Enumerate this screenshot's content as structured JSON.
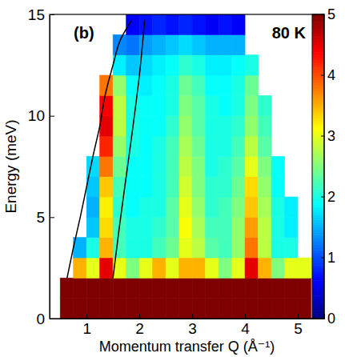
{
  "chart_data": {
    "type": "heatmap",
    "xlabel": "Momentum transfer Q (Å⁻¹)",
    "ylabel": "Energy (meV)",
    "annotations": [
      "(b)",
      "80 K"
    ],
    "color": "jet",
    "xlim": [
      0.3,
      5.5
    ],
    "ylim": [
      0,
      15
    ],
    "xticks": [
      1,
      2,
      3,
      4,
      5
    ],
    "yticks": [
      0,
      5,
      10,
      15
    ],
    "zlim": [
      0,
      5
    ],
    "zticks": [
      0,
      1,
      2,
      3,
      4,
      5
    ],
    "x_edges": [
      0.5,
      0.75,
      1.0,
      1.25,
      1.5,
      1.75,
      2.0,
      2.25,
      2.5,
      2.75,
      3.0,
      3.25,
      3.5,
      3.75,
      4.0,
      4.25,
      4.5,
      4.75,
      5.0,
      5.25
    ],
    "y_edges": [
      0,
      1,
      2,
      3,
      4,
      5,
      6,
      7,
      8,
      9,
      10,
      11,
      12,
      13,
      14,
      15
    ],
    "z": [
      [
        5,
        5,
        5,
        5,
        5,
        5,
        5,
        5,
        5,
        5,
        5,
        5,
        5,
        5,
        5,
        5,
        5,
        5,
        5
      ],
      [
        5,
        5,
        5,
        5,
        5,
        5,
        5,
        5,
        5,
        5,
        5,
        5,
        5,
        5,
        5,
        5,
        5,
        5,
        5
      ],
      [
        null,
        3.5,
        3,
        4.5,
        3,
        2.5,
        3,
        3.5,
        3,
        3.5,
        3.5,
        3,
        2.5,
        3,
        4.5,
        3.5,
        2.5,
        3,
        3
      ],
      [
        null,
        1.5,
        2,
        3.5,
        2.2,
        2,
        2,
        2.2,
        2.4,
        3,
        2.8,
        2.3,
        2.2,
        2.6,
        3.8,
        2.8,
        2,
        2,
        null
      ],
      [
        null,
        null,
        1.6,
        3.3,
        2.2,
        2,
        2,
        2.1,
        2.3,
        3.1,
        2.7,
        2.2,
        2.2,
        2.6,
        3.6,
        2.8,
        2,
        1.8,
        null
      ],
      [
        null,
        null,
        1.5,
        3.2,
        2.1,
        1.9,
        2,
        2,
        2.3,
        3,
        2.6,
        2.1,
        2.2,
        2.5,
        3.4,
        2.7,
        2,
        1.8,
        null
      ],
      [
        null,
        null,
        1.6,
        3.4,
        2.2,
        1.9,
        1.9,
        2,
        2.2,
        2.9,
        2.5,
        2.1,
        2.1,
        2.4,
        3.3,
        2.6,
        1.9,
        null,
        null
      ],
      [
        null,
        null,
        1.7,
        3.8,
        2.4,
        1.9,
        1.9,
        2,
        2.2,
        2.8,
        2.5,
        2,
        2.1,
        2.3,
        3,
        2.5,
        1.9,
        null,
        null
      ],
      [
        null,
        null,
        null,
        4.2,
        2.6,
        2,
        1.9,
        2,
        2.2,
        2.7,
        2.4,
        2,
        2,
        2.2,
        2.8,
        2.3,
        null,
        null,
        null
      ],
      [
        null,
        null,
        null,
        4.5,
        2.8,
        2,
        1.9,
        1.9,
        2.1,
        2.6,
        2.3,
        2,
        2,
        2.1,
        2.6,
        2.2,
        null,
        null,
        null
      ],
      [
        null,
        null,
        null,
        4.4,
        2.8,
        2,
        1.9,
        1.9,
        2,
        2.5,
        2.3,
        2,
        1.9,
        2,
        2.5,
        2.1,
        null,
        null,
        null
      ],
      [
        null,
        null,
        null,
        3.8,
        2.6,
        1.9,
        1.8,
        1.9,
        2,
        2.4,
        2.2,
        1.9,
        1.9,
        2,
        2.4,
        null,
        null,
        null,
        null
      ],
      [
        null,
        null,
        null,
        null,
        1.8,
        1.6,
        1.7,
        1.8,
        1.9,
        2.1,
        2,
        1.8,
        1.8,
        1.9,
        2,
        null,
        null,
        null,
        null
      ],
      [
        null,
        null,
        null,
        null,
        1.3,
        1.2,
        1.4,
        1.5,
        1.6,
        1.7,
        1.6,
        1.5,
        1.5,
        1.5,
        null,
        null,
        null,
        null,
        null
      ],
      [
        null,
        null,
        null,
        null,
        null,
        0.6,
        0.7,
        0.8,
        0.7,
        0.8,
        0.7,
        0.6,
        0.7,
        0.6,
        null,
        null,
        null,
        null,
        null
      ]
    ],
    "lines": [
      {
        "x": [
          0.63,
          0.75,
          0.88,
          1.0,
          1.12,
          1.25,
          1.35,
          1.5,
          1.65,
          1.85
        ],
        "y": [
          2,
          3.5,
          5,
          6.5,
          8,
          9.5,
          11,
          12.5,
          13.8,
          14.7
        ],
        "color": "#000000"
      },
      {
        "x": [
          1.5,
          1.62,
          1.75,
          1.88,
          2.0,
          2.1
        ],
        "y": [
          2,
          4.5,
          7,
          9.5,
          12,
          14.7
        ],
        "color": "#000000"
      }
    ]
  }
}
